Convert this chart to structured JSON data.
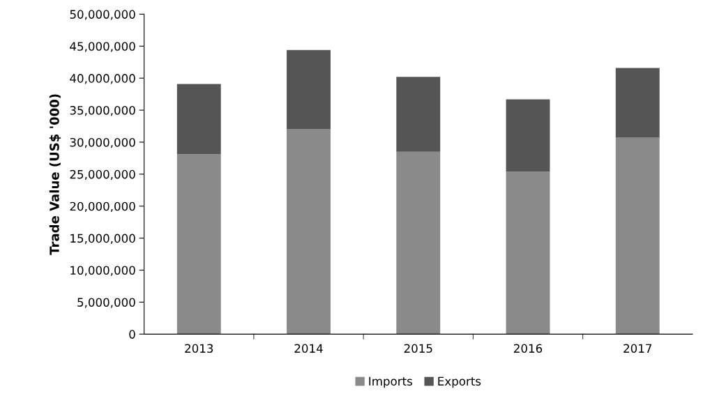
{
  "chart_data": {
    "type": "bar",
    "stacked": true,
    "ylabel": "Trade Value (US$ '000)",
    "categories": [
      "2013",
      "2014",
      "2015",
      "2016",
      "2017"
    ],
    "series": [
      {
        "name": "Imports",
        "color": "#8a8a8a",
        "values": [
          28100000,
          32000000,
          28500000,
          25400000,
          30700000
        ]
      },
      {
        "name": "Exports",
        "color": "#555555",
        "values": [
          11000000,
          12400000,
          11700000,
          11300000,
          10900000
        ]
      }
    ],
    "ylim": [
      0,
      50000000
    ],
    "yticks": [
      {
        "value": 0,
        "label": "0"
      },
      {
        "value": 5000000,
        "label": "5,000,000"
      },
      {
        "value": 10000000,
        "label": "10,000,000"
      },
      {
        "value": 15000000,
        "label": "15,000,000"
      },
      {
        "value": 20000000,
        "label": "20,000,000"
      },
      {
        "value": 25000000,
        "label": "25,000,000"
      },
      {
        "value": 30000000,
        "label": "30,000,000"
      },
      {
        "value": 35000000,
        "label": "35,000,000"
      },
      {
        "value": 40000000,
        "label": "40,000,000"
      },
      {
        "value": 45000000,
        "label": "45,000,000"
      },
      {
        "value": 50000000,
        "label": "50,000,000"
      }
    ],
    "grid": false,
    "legend": "bottom"
  }
}
